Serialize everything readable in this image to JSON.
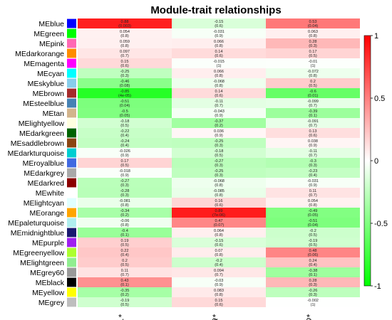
{
  "chart_data": {
    "type": "heatmap",
    "title": "Module-trait relationships",
    "columns": [
      "L*",
      "a*",
      "b*"
    ],
    "rows": [
      {
        "name": "MEblue",
        "color": "#0000ff",
        "corr": [
          0.88,
          -0.15,
          0.53
        ],
        "p": [
          "(0.003)",
          "(0.6)",
          "(0.04)"
        ]
      },
      {
        "name": "MEgreen",
        "color": "#00ff00",
        "corr": [
          0.054,
          -0.031,
          0.063
        ],
        "p": [
          "(0.8)",
          "(0.9)",
          "(0.8)"
        ]
      },
      {
        "name": "MEpink",
        "color": "#ff69b4",
        "corr": [
          0.059,
          0.066,
          0.28
        ],
        "p": [
          "(0.8)",
          "(0.8)",
          "(0.3)"
        ]
      },
      {
        "name": "MEdarkorange",
        "color": "#ff8c00",
        "corr": [
          0.097,
          0.14,
          0.17
        ],
        "p": [
          "(0.7)",
          "(0.6)",
          "(0.5)"
        ]
      },
      {
        "name": "MEmagenta",
        "color": "#ff00ff",
        "corr": [
          0.15,
          -0.015,
          -0.01
        ],
        "p": [
          "(0.6)",
          "(1)",
          "(1)"
        ]
      },
      {
        "name": "MEcyan",
        "color": "#00ffff",
        "corr": [
          -0.25,
          0.066,
          -0.072
        ],
        "p": [
          "(0.3)",
          "(0.8)",
          "(0.8)"
        ]
      },
      {
        "name": "MEskyblue",
        "color": "#87ceeb",
        "corr": [
          -0.46,
          -0.068,
          0.2
        ],
        "p": [
          "(0.08)",
          "(0.8)",
          "(0.5)"
        ]
      },
      {
        "name": "MEbrown",
        "color": "#a52a2a",
        "corr": [
          -0.85,
          0.14,
          -0.6
        ],
        "p": [
          "(4e-05)",
          "(0.6)",
          "(0.01)"
        ]
      },
      {
        "name": "MEsteelblue",
        "color": "#4682b4",
        "corr": [
          -0.51,
          -0.11,
          -0.099
        ],
        "p": [
          "(0.04)",
          "(0.7)",
          "(0.7)"
        ]
      },
      {
        "name": "MEtan",
        "color": "#d2b48c",
        "corr": [
          -0.5,
          -0.043,
          -0.39
        ],
        "p": [
          "(0.05)",
          "(0.9)",
          "(0.1)"
        ]
      },
      {
        "name": "MElightyellow",
        "color": "#ffffe0",
        "corr": [
          -0.18,
          -0.37,
          -0.091
        ],
        "p": [
          "(0.5)",
          "(0.2)",
          "(0.7)"
        ]
      },
      {
        "name": "MEdarkgreen",
        "color": "#006400",
        "corr": [
          -0.22,
          0.036,
          0.13
        ],
        "p": [
          "(0.4)",
          "(0.9)",
          "(0.6)"
        ]
      },
      {
        "name": "MEsaddlebrown",
        "color": "#8b4513",
        "corr": [
          -0.24,
          -0.25,
          0.038
        ],
        "p": [
          "(0.4)",
          "(0.3)",
          "(0.9)"
        ]
      },
      {
        "name": "MEdarkturquoise",
        "color": "#00ced1",
        "corr": [
          -0.026,
          -0.18,
          -0.11
        ],
        "p": [
          "(0.9)",
          "(0.5)",
          "(0.7)"
        ]
      },
      {
        "name": "MEroyalblue",
        "color": "#4169e1",
        "corr": [
          0.17,
          -0.27,
          -0.3
        ],
        "p": [
          "(0.5)",
          "(0.3)",
          "(0.3)"
        ]
      },
      {
        "name": "MEdarkgrey",
        "color": "#a9a9a9",
        "corr": [
          -0.018,
          -0.25,
          -0.23
        ],
        "p": [
          "(0.9)",
          "(0.3)",
          "(0.4)"
        ]
      },
      {
        "name": "MEdarkred",
        "color": "#8b0000",
        "corr": [
          -0.27,
          -0.068,
          -0.031
        ],
        "p": [
          "(0.3)",
          "(0.8)",
          "(0.9)"
        ]
      },
      {
        "name": "MEwhite",
        "color": "#ffffff",
        "corr": [
          -0.28,
          -0.085,
          0.11
        ],
        "p": [
          "(0.3)",
          "(0.8)",
          "(0.7)"
        ]
      },
      {
        "name": "MElightcyan",
        "color": "#e0ffff",
        "corr": [
          -0.081,
          0.16,
          0.054
        ],
        "p": [
          "(0.8)",
          "(0.6)",
          "(0.8)"
        ]
      },
      {
        "name": "MEorange",
        "color": "#ffa500",
        "corr": [
          -0.34,
          0.89,
          -0.49
        ],
        "p": [
          "(0.2)",
          "(7e-06)",
          "(0.05)"
        ]
      },
      {
        "name": "MEpaleturquoise",
        "color": "#afeeee",
        "corr": [
          -0.06,
          0.47,
          -0.51
        ],
        "p": [
          "(0.8)",
          "(0.07)",
          "(0.04)"
        ]
      },
      {
        "name": "MEmidnightblue",
        "color": "#191970",
        "corr": [
          -0.4,
          0.064,
          -0.2
        ],
        "p": [
          "(0.1)",
          "(0.8)",
          "(0.5)"
        ]
      },
      {
        "name": "MEpurple",
        "color": "#a020f0",
        "corr": [
          0.19,
          -0.15,
          -0.19
        ],
        "p": [
          "(0.5)",
          "(0.6)",
          "(0.5)"
        ]
      },
      {
        "name": "MEgreenyellow",
        "color": "#adff2f",
        "corr": [
          0.22,
          0.07,
          0.48
        ],
        "p": [
          "(0.4)",
          "(0.8)",
          "(0.06)"
        ]
      },
      {
        "name": "MElightgreen",
        "color": "#90ee90",
        "corr": [
          0.2,
          -0.2,
          0.24
        ],
        "p": [
          "(0.5)",
          "(0.4)",
          "(0.4)"
        ]
      },
      {
        "name": "MEgrey60",
        "color": "#999999",
        "corr": [
          0.11,
          0.094,
          -0.38
        ],
        "p": [
          "(0.7)",
          "(0.7)",
          "(0.1)"
        ]
      },
      {
        "name": "MEblack",
        "color": "#000000",
        "corr": [
          0.43,
          -0.03,
          0.28
        ],
        "p": [
          "(0.1)",
          "(0.9)",
          "(0.3)"
        ]
      },
      {
        "name": "MEyellow",
        "color": "#ffff00",
        "corr": [
          -0.35,
          0.083,
          -0.26
        ],
        "p": [
          "(0.2)",
          "(0.8)",
          "(0.3)"
        ]
      },
      {
        "name": "MEgrey",
        "color": "#bebebe",
        "corr": [
          -0.19,
          0.15,
          -0.002
        ],
        "p": [
          "(0.5)",
          "(0.6)",
          "(1)"
        ]
      }
    ],
    "cell_labels": [
      [
        "0.88",
        "-0.15",
        "0.53"
      ],
      [
        "0.054",
        "-0.031",
        "0.063"
      ],
      [
        "0.059",
        "0.066",
        "0.28"
      ],
      [
        "0.097",
        "0.14",
        "0.17"
      ],
      [
        "0.15",
        "-0.015",
        "-0.01"
      ],
      [
        "-0.25",
        "0.066",
        "-0.072"
      ],
      [
        "-0.46",
        "-0.068",
        "0.2"
      ],
      [
        "-0.85",
        "0.14",
        "-0.6"
      ],
      [
        "-0.51",
        "-0.11",
        "-0.099"
      ],
      [
        "-0.5",
        "-0.043",
        "-0.39"
      ],
      [
        "-0.18",
        "-0.37",
        "-0.091"
      ],
      [
        "-0.22",
        "0.036",
        "0.13"
      ],
      [
        "-0.24",
        "-0.25",
        "0.038"
      ],
      [
        "-0.026",
        "-0.18",
        "-0.11"
      ],
      [
        "0.17",
        "-0.27",
        "-0.3"
      ],
      [
        "-0.018",
        "-0.25",
        "-0.23"
      ],
      [
        "-0.27",
        "-0.068",
        "-0.031"
      ],
      [
        "-0.28",
        "-0.085",
        "0.11"
      ],
      [
        "-0.081",
        "0.16",
        "0.054"
      ],
      [
        "-0.34",
        "0.89",
        "-0.49"
      ],
      [
        "-0.06",
        "0.47",
        "-0.51"
      ],
      [
        "-0.4",
        "0.064",
        "-0.2"
      ],
      [
        "0.19",
        "-0.15",
        "-0.19"
      ],
      [
        "0.22",
        "0.07",
        "0.48"
      ],
      [
        "0.2",
        "-0.2",
        "0.24"
      ],
      [
        "0.11",
        "0.094",
        "-0.38"
      ],
      [
        "0.43",
        "-0.03",
        "0.28"
      ],
      [
        "-0.35",
        "0.083",
        "-0.26"
      ],
      [
        "-0.19",
        "0.15",
        "-0.002"
      ]
    ],
    "color_scale": {
      "min": -1,
      "max": 1,
      "low": "#00ff00",
      "mid": "#ffffff",
      "high": "#ff0000"
    },
    "legend_ticks": [
      "1",
      "0.5",
      "0",
      "-0.5",
      "-1"
    ],
    "legend_tick_values": [
      1,
      0.5,
      0,
      -0.5,
      -1
    ],
    "legend_position": "right"
  }
}
